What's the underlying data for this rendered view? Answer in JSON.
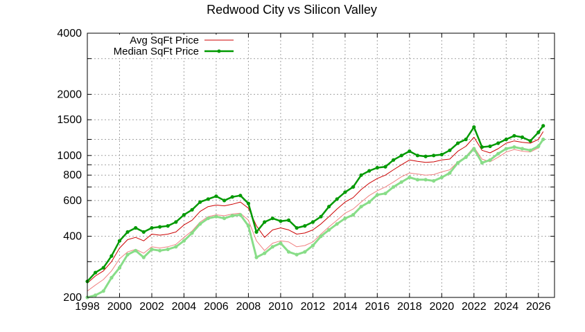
{
  "chart_data": {
    "type": "line",
    "title": "Redwood City vs Silicon Valley",
    "xlabel": "",
    "ylabel": "",
    "xlim": [
      1998,
      2027
    ],
    "ylim": [
      200,
      4000
    ],
    "y_scale": "log",
    "grid": true,
    "legend_position": "top-left",
    "x_ticks": [
      1998,
      2000,
      2002,
      2004,
      2006,
      2008,
      2010,
      2012,
      2014,
      2016,
      2018,
      2020,
      2022,
      2024,
      2026
    ],
    "y_ticks": [
      200,
      400,
      600,
      800,
      1000,
      1500,
      2000,
      4000
    ],
    "y_minor_grid": [
      300,
      500,
      700,
      900,
      1200,
      3000
    ],
    "colors": {
      "avg_primary": "#cc0000",
      "avg_secondary": "#f08080",
      "median_primary": "#009900",
      "median_secondary": "#88dd88"
    },
    "series": [
      {
        "name": "Avg SqFt Price",
        "role": "avg-primary",
        "x": [
          1998.0,
          1998.5,
          1999.0,
          1999.5,
          2000.0,
          2000.5,
          2001.0,
          2001.5,
          2002.0,
          2002.5,
          2003.0,
          2003.5,
          2004.0,
          2004.5,
          2005.0,
          2005.5,
          2006.0,
          2006.5,
          2007.0,
          2007.5,
          2008.0,
          2008.5,
          2009.0,
          2009.5,
          2010.0,
          2010.5,
          2011.0,
          2011.5,
          2012.0,
          2012.5,
          2013.0,
          2013.5,
          2014.0,
          2014.5,
          2015.0,
          2015.5,
          2016.0,
          2016.5,
          2017.0,
          2017.5,
          2018.0,
          2018.5,
          2019.0,
          2019.5,
          2020.0,
          2020.5,
          2021.0,
          2021.5,
          2022.0,
          2022.5,
          2023.0,
          2023.5,
          2024.0,
          2024.5,
          2025.0,
          2025.5,
          2026.0,
          2026.3
        ],
        "values": [
          235,
          255,
          270,
          300,
          350,
          385,
          395,
          380,
          410,
          405,
          410,
          420,
          455,
          480,
          530,
          560,
          570,
          565,
          575,
          590,
          550,
          450,
          395,
          430,
          440,
          430,
          410,
          415,
          430,
          460,
          500,
          545,
          590,
          620,
          680,
          730,
          770,
          800,
          850,
          900,
          950,
          935,
          925,
          930,
          950,
          960,
          1050,
          1110,
          1230,
          1060,
          1030,
          1080,
          1150,
          1180,
          1160,
          1150,
          1200,
          1310
        ]
      },
      {
        "name": "",
        "role": "avg-secondary",
        "x": [
          1998.0,
          1998.5,
          1999.0,
          1999.5,
          2000.0,
          2000.5,
          2001.0,
          2001.5,
          2002.0,
          2002.5,
          2003.0,
          2003.5,
          2004.0,
          2004.5,
          2005.0,
          2005.5,
          2006.0,
          2006.5,
          2007.0,
          2007.5,
          2008.0,
          2008.5,
          2009.0,
          2009.5,
          2010.0,
          2010.5,
          2011.0,
          2011.5,
          2012.0,
          2012.5,
          2013.0,
          2013.5,
          2014.0,
          2014.5,
          2015.0,
          2015.5,
          2016.0,
          2016.5,
          2017.0,
          2017.5,
          2018.0,
          2018.5,
          2019.0,
          2019.5,
          2020.0,
          2020.5,
          2021.0,
          2021.5,
          2022.0,
          2022.5,
          2023.0,
          2023.5,
          2024.0,
          2024.5,
          2025.0,
          2025.5,
          2026.0,
          2026.3
        ],
        "values": [
          215,
          230,
          245,
          270,
          310,
          335,
          345,
          330,
          355,
          350,
          355,
          365,
          395,
          425,
          470,
          500,
          510,
          505,
          515,
          520,
          480,
          380,
          340,
          370,
          380,
          375,
          355,
          360,
          375,
          410,
          445,
          480,
          520,
          545,
          590,
          635,
          670,
          700,
          740,
          785,
          820,
          810,
          800,
          805,
          830,
          850,
          930,
          990,
          1100,
          960,
          930,
          980,
          1040,
          1070,
          1050,
          1040,
          1090,
          1200
        ]
      },
      {
        "name": "Median SqFt Price",
        "role": "median-primary",
        "x": [
          1998.0,
          1998.5,
          1999.0,
          1999.5,
          2000.0,
          2000.5,
          2001.0,
          2001.5,
          2002.0,
          2002.5,
          2003.0,
          2003.5,
          2004.0,
          2004.5,
          2005.0,
          2005.5,
          2006.0,
          2006.5,
          2007.0,
          2007.5,
          2008.0,
          2008.5,
          2009.0,
          2009.5,
          2010.0,
          2010.5,
          2011.0,
          2011.5,
          2012.0,
          2012.5,
          2013.0,
          2013.5,
          2014.0,
          2014.5,
          2015.0,
          2015.5,
          2016.0,
          2016.5,
          2017.0,
          2017.5,
          2018.0,
          2018.5,
          2019.0,
          2019.5,
          2020.0,
          2020.5,
          2021.0,
          2021.5,
          2022.0,
          2022.5,
          2023.0,
          2023.5,
          2024.0,
          2024.5,
          2025.0,
          2025.5,
          2026.0,
          2026.3
        ],
        "values": [
          240,
          265,
          280,
          320,
          380,
          420,
          440,
          420,
          440,
          445,
          450,
          470,
          510,
          540,
          590,
          610,
          630,
          600,
          625,
          635,
          580,
          420,
          470,
          490,
          475,
          480,
          440,
          450,
          470,
          500,
          560,
          610,
          660,
          700,
          800,
          840,
          870,
          880,
          950,
          1000,
          1050,
          1000,
          990,
          1000,
          1010,
          1060,
          1150,
          1200,
          1380,
          1100,
          1110,
          1150,
          1200,
          1250,
          1230,
          1180,
          1300,
          1400
        ]
      },
      {
        "name": "",
        "role": "median-secondary",
        "x": [
          1998.0,
          1998.5,
          1999.0,
          1999.5,
          2000.0,
          2000.5,
          2001.0,
          2001.5,
          2002.0,
          2002.5,
          2003.0,
          2003.5,
          2004.0,
          2004.5,
          2005.0,
          2005.5,
          2006.0,
          2006.5,
          2007.0,
          2007.5,
          2008.0,
          2008.5,
          2009.0,
          2009.5,
          2010.0,
          2010.5,
          2011.0,
          2011.5,
          2012.0,
          2012.5,
          2013.0,
          2013.5,
          2014.0,
          2014.5,
          2015.0,
          2015.5,
          2016.0,
          2016.5,
          2017.0,
          2017.5,
          2018.0,
          2018.5,
          2019.0,
          2019.5,
          2020.0,
          2020.5,
          2021.0,
          2021.5,
          2022.0,
          2022.5,
          2023.0,
          2023.5,
          2024.0,
          2024.5,
          2025.0,
          2025.5,
          2026.0,
          2026.3
        ],
        "values": [
          200,
          205,
          215,
          250,
          280,
          325,
          340,
          315,
          345,
          340,
          345,
          355,
          380,
          415,
          460,
          490,
          500,
          490,
          505,
          510,
          450,
          315,
          330,
          355,
          370,
          335,
          325,
          335,
          360,
          400,
          430,
          460,
          490,
          510,
          560,
          590,
          640,
          650,
          700,
          740,
          780,
          760,
          760,
          750,
          780,
          820,
          920,
          980,
          1080,
          920,
          950,
          1020,
          1080,
          1100,
          1080,
          1060,
          1110,
          1200
        ]
      }
    ]
  }
}
